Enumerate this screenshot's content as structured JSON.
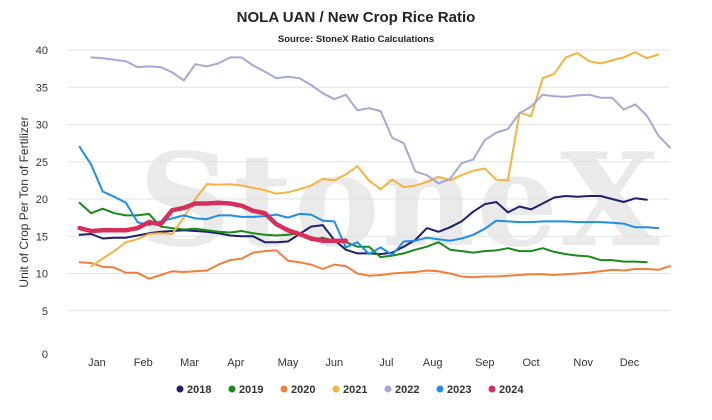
{
  "watermark": "StoneX",
  "chart_data": {
    "type": "line",
    "title": "NOLA UAN / New Crop Rice Ratio",
    "subtitle": "Source: StoneX Ratio Calculations",
    "ylabel": "Unit of Crop Per Ton of Fertilizer",
    "xlabel": "",
    "ylim": [
      0,
      40
    ],
    "xlim": [
      0,
      52
    ],
    "yticks": [
      0,
      5,
      10,
      15,
      20,
      25,
      30,
      35,
      40
    ],
    "ytick_labels": [
      "0",
      "5",
      "10",
      "15",
      "20",
      "25",
      "30",
      "35",
      "40"
    ],
    "month_labels": [
      "Jan",
      "Feb",
      "Mar",
      "Apr",
      "May",
      "Jun",
      "Jul",
      "Aug",
      "Sep",
      "Oct",
      "Nov",
      "Dec"
    ],
    "month_positions": [
      2.5,
      6.5,
      10.5,
      14.5,
      19,
      23,
      27.5,
      31.5,
      36,
      40,
      44.5,
      48.5
    ],
    "grid": true,
    "legend_position": "bottom",
    "series": [
      {
        "name": "2018",
        "color": "#1f1f6b",
        "width": 2,
        "x": [
          1,
          2,
          3,
          4,
          5,
          6,
          7,
          8,
          9,
          10,
          11,
          12,
          13,
          14,
          15,
          16,
          17,
          18,
          19,
          20,
          21,
          22,
          23,
          24,
          25,
          26,
          27,
          28,
          29,
          30,
          31,
          32,
          33,
          34,
          35,
          36,
          37,
          38,
          39,
          40,
          41,
          42,
          43,
          44,
          45,
          46,
          47,
          48,
          49,
          50,
          51
        ],
        "y": [
          15.2,
          15.3,
          14.7,
          14.8,
          14.8,
          15.1,
          15.4,
          15.6,
          15.7,
          15.8,
          15.7,
          15.6,
          15.4,
          15.1,
          15.0,
          15.0,
          14.2,
          14.2,
          14.3,
          15.3,
          16.3,
          16.5,
          14.5,
          13.2,
          12.7,
          12.7,
          12.6,
          12.8,
          13.6,
          14.5,
          16.1,
          15.6,
          16.2,
          17.0,
          18.3,
          19.3,
          19.6,
          18.2,
          19.0,
          18.6,
          19.4,
          20.2,
          20.4,
          20.3,
          20.4,
          20.4,
          20.0,
          19.6,
          20.1,
          19.9,
          null
        ]
      },
      {
        "name": "2019",
        "color": "#1a8a1a",
        "width": 2,
        "x": [
          1,
          2,
          3,
          4,
          5,
          6,
          7,
          8,
          9,
          10,
          11,
          12,
          13,
          14,
          15,
          16,
          17,
          18,
          19,
          20,
          21,
          22,
          23,
          24,
          25,
          26,
          27,
          28,
          29,
          30,
          31,
          32,
          33,
          34,
          35,
          36,
          37,
          38,
          39,
          40,
          41,
          42,
          43,
          44,
          45,
          46,
          47,
          48,
          49,
          50,
          51
        ],
        "y": [
          19.5,
          18.1,
          18.7,
          18.1,
          17.8,
          17.8,
          18.0,
          16.3,
          16.1,
          15.9,
          16.0,
          15.8,
          15.6,
          15.5,
          15.7,
          15.4,
          15.2,
          15.1,
          15.2,
          15.4,
          14.5,
          14.8,
          14.4,
          14.2,
          13.6,
          13.6,
          12.2,
          12.4,
          12.7,
          13.2,
          13.6,
          14.2,
          13.2,
          13.0,
          12.8,
          13.0,
          13.1,
          13.4,
          13.0,
          13.0,
          13.4,
          12.9,
          12.6,
          12.4,
          12.3,
          11.8,
          11.8,
          11.6,
          11.6,
          11.5,
          null
        ]
      },
      {
        "name": "2020",
        "color": "#f07f3c",
        "width": 2,
        "x": [
          1,
          2,
          3,
          4,
          5,
          6,
          7,
          8,
          9,
          10,
          11,
          12,
          13,
          14,
          15,
          16,
          17,
          18,
          19,
          20,
          21,
          22,
          23,
          24,
          25,
          26,
          27,
          28,
          29,
          30,
          31,
          32,
          33,
          34,
          35,
          36,
          37,
          38,
          39,
          40,
          41,
          42,
          43,
          44,
          45,
          46,
          47,
          48,
          49,
          50,
          51,
          52
        ],
        "y": [
          11.5,
          11.4,
          10.9,
          10.8,
          10.1,
          10.1,
          9.3,
          9.8,
          10.3,
          10.2,
          10.3,
          10.4,
          11.2,
          11.8,
          12.0,
          12.8,
          13.0,
          13.1,
          11.7,
          11.5,
          11.2,
          10.6,
          11.2,
          11.0,
          10.0,
          9.7,
          9.8,
          10.0,
          10.1,
          10.2,
          10.4,
          10.3,
          10.0,
          9.6,
          9.5,
          9.6,
          9.6,
          9.7,
          9.8,
          9.9,
          9.9,
          9.8,
          9.9,
          10.0,
          10.1,
          10.3,
          10.5,
          10.4,
          10.6,
          10.6,
          10.5,
          11.0
        ]
      },
      {
        "name": "2021",
        "color": "#f5b342",
        "width": 2,
        "x": [
          2,
          3,
          4,
          5,
          6,
          7,
          8,
          9,
          10,
          11,
          12,
          13,
          14,
          15,
          16,
          17,
          18,
          19,
          20,
          21,
          22,
          23,
          24,
          25,
          26,
          27,
          28,
          29,
          30,
          31,
          32,
          33,
          34,
          35,
          36,
          37,
          38,
          39,
          40,
          41,
          42,
          43,
          44,
          45,
          46,
          47,
          48,
          49,
          50,
          51,
          52
        ],
        "y": [
          11.0,
          12.0,
          13.0,
          14.2,
          14.6,
          15.3,
          15.4,
          15.3,
          17.5,
          20.0,
          22.0,
          21.9,
          22.0,
          21.8,
          21.5,
          21.2,
          20.7,
          20.9,
          21.3,
          21.8,
          22.7,
          22.5,
          23.3,
          24.4,
          22.5,
          21.3,
          22.6,
          21.6,
          21.8,
          22.3,
          23.0,
          22.5,
          23.2,
          23.8,
          24.1,
          22.6,
          22.5,
          31.6,
          31.1,
          36.2,
          36.8,
          39.0,
          39.6,
          38.5,
          38.2,
          38.6,
          39.0,
          39.7,
          38.9,
          39.4,
          null
        ]
      },
      {
        "name": "2022",
        "color": "#a8a8d8",
        "width": 2,
        "x": [
          2,
          3,
          4,
          5,
          6,
          7,
          8,
          9,
          10,
          11,
          12,
          13,
          14,
          15,
          16,
          17,
          18,
          19,
          20,
          21,
          22,
          23,
          24,
          25,
          26,
          27,
          28,
          29,
          30,
          31,
          32,
          33,
          34,
          35,
          36,
          37,
          38,
          39,
          40,
          41,
          42,
          43,
          44,
          45,
          46,
          47,
          48,
          49,
          50,
          51,
          52
        ],
        "y": [
          39.0,
          38.9,
          38.7,
          38.5,
          37.7,
          37.8,
          37.7,
          37.0,
          35.9,
          38.1,
          37.8,
          38.2,
          39.0,
          39.0,
          37.9,
          37.1,
          36.2,
          36.4,
          36.2,
          35.3,
          34.2,
          33.4,
          34.0,
          31.9,
          32.2,
          31.8,
          28.2,
          27.5,
          23.7,
          23.2,
          22.1,
          22.7,
          24.8,
          25.3,
          27.9,
          28.9,
          29.4,
          31.5,
          32.4,
          34.0,
          33.8,
          33.7,
          33.9,
          34.0,
          33.6,
          33.6,
          32.0,
          32.7,
          31.2,
          28.5,
          26.9
        ]
      },
      {
        "name": "2023",
        "color": "#1f8fe5",
        "width": 2,
        "x": [
          1,
          2,
          3,
          4,
          5,
          6,
          7,
          8,
          9,
          10,
          11,
          12,
          13,
          14,
          15,
          16,
          17,
          18,
          19,
          20,
          21,
          22,
          23,
          24,
          25,
          26,
          27,
          28,
          29,
          30,
          31,
          32,
          33,
          34,
          35,
          36,
          37,
          38,
          39,
          40,
          41,
          42,
          43,
          44,
          45,
          46,
          47,
          48,
          49,
          50,
          51
        ],
        "y": [
          27.0,
          24.6,
          21.0,
          20.3,
          19.5,
          16.9,
          16.5,
          17.0,
          17.4,
          17.8,
          17.4,
          17.3,
          17.8,
          17.8,
          17.6,
          17.6,
          17.7,
          17.9,
          17.5,
          18.0,
          17.9,
          17.1,
          17.0,
          13.5,
          14.2,
          12.6,
          13.5,
          12.5,
          14.3,
          14.4,
          14.8,
          14.6,
          14.4,
          14.7,
          15.2,
          16.0,
          17.1,
          17.0,
          16.9,
          16.9,
          17.0,
          17.0,
          17.0,
          16.9,
          16.9,
          16.9,
          16.8,
          16.7,
          16.2,
          16.2,
          16.1
        ]
      },
      {
        "name": "2024",
        "color": "#d62f5d",
        "width": 4.5,
        "x": [
          1,
          2,
          3,
          4,
          5,
          6,
          7,
          8,
          9,
          10,
          11,
          12,
          13,
          14,
          15,
          16,
          17,
          18,
          19,
          20,
          21,
          22,
          23,
          24
        ],
        "y": [
          16.1,
          15.7,
          15.8,
          15.8,
          15.8,
          16.1,
          16.9,
          16.6,
          18.5,
          18.8,
          19.4,
          19.4,
          19.5,
          19.4,
          19.1,
          18.4,
          18.1,
          16.6,
          15.8,
          15.3,
          14.7,
          14.4,
          14.4,
          14.4
        ]
      }
    ]
  }
}
